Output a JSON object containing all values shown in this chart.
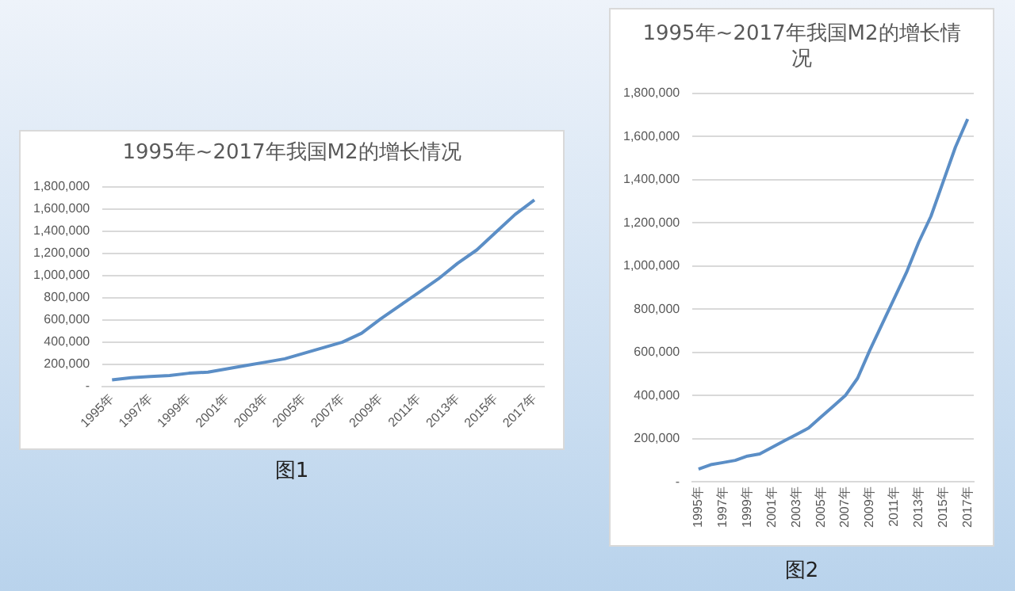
{
  "chart_data": [
    {
      "type": "line",
      "title": "1995年~2017年我国M2的增长情况",
      "categories": [
        "1995年",
        null,
        "1997年",
        null,
        "1999年",
        null,
        "2001年",
        null,
        "2003年",
        null,
        "2005年",
        null,
        "2007年",
        null,
        "2009年",
        null,
        "2011年",
        null,
        "2013年",
        null,
        "2015年",
        null,
        "2017年"
      ],
      "series": [
        {
          "color": "#5b8ec6",
          "values": [
            60000,
            80000,
            90000,
            100000,
            120000,
            130000,
            160000,
            190000,
            220000,
            250000,
            300000,
            350000,
            400000,
            480000,
            610000,
            730000,
            850000,
            970000,
            1110000,
            1230000,
            1390000,
            1550000,
            1680000
          ]
        }
      ],
      "ylim": [
        0,
        1800000
      ],
      "yticks": [
        {
          "value": 0,
          "label": "-"
        },
        {
          "value": 200000,
          "label": "200,000"
        },
        {
          "value": 400000,
          "label": "400,000"
        },
        {
          "value": 600000,
          "label": "600,000"
        },
        {
          "value": 800000,
          "label": "800,000"
        },
        {
          "value": 1000000,
          "label": "1,000,000"
        },
        {
          "value": 1200000,
          "label": "1,200,000"
        },
        {
          "value": 1400000,
          "label": "1,400,000"
        },
        {
          "value": 1600000,
          "label": "1,600,000"
        },
        {
          "value": 1800000,
          "label": "1,800,000"
        }
      ],
      "grid": "y",
      "legend": false,
      "marker": "none",
      "line_style": "solid",
      "annotations": [
        "图1"
      ]
    },
    {
      "type": "line",
      "title": "1995年~2017年我国M2的增长情况",
      "categories": [
        "1995年",
        null,
        "1997年",
        null,
        "1999年",
        null,
        "2001年",
        null,
        "2003年",
        null,
        "2005年",
        null,
        "2007年",
        null,
        "2009年",
        null,
        "2011年",
        null,
        "2013年",
        null,
        "2015年",
        null,
        "2017年"
      ],
      "series": [
        {
          "color": "#5b8ec6",
          "values": [
            60000,
            80000,
            90000,
            100000,
            120000,
            130000,
            160000,
            190000,
            220000,
            250000,
            300000,
            350000,
            400000,
            480000,
            610000,
            730000,
            850000,
            970000,
            1110000,
            1230000,
            1390000,
            1550000,
            1680000
          ]
        }
      ],
      "ylim": [
        0,
        1800000
      ],
      "yticks": [
        {
          "value": 0,
          "label": "-"
        },
        {
          "value": 200000,
          "label": "200,000"
        },
        {
          "value": 400000,
          "label": "400,000"
        },
        {
          "value": 600000,
          "label": "600,000"
        },
        {
          "value": 800000,
          "label": "800,000"
        },
        {
          "value": 1000000,
          "label": "1,000,000"
        },
        {
          "value": 1200000,
          "label": "1,200,000"
        },
        {
          "value": 1400000,
          "label": "1,400,000"
        },
        {
          "value": 1600000,
          "label": "1,600,000"
        },
        {
          "value": 1800000,
          "label": "1,800,000"
        }
      ],
      "grid": "y",
      "legend": false,
      "marker": "none",
      "line_style": "solid",
      "annotations": [
        "图2"
      ]
    }
  ]
}
